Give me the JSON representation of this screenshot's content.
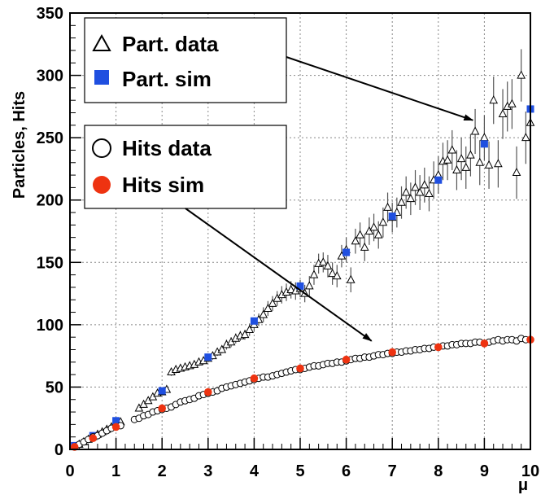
{
  "chart_data": {
    "type": "scatter",
    "xlabel": "μ",
    "ylabel": "Particles, Hits",
    "xlim": [
      0,
      10
    ],
    "ylim": [
      0,
      350
    ],
    "grid": true,
    "x_ticks": [
      0,
      1,
      2,
      3,
      4,
      5,
      6,
      7,
      8,
      9,
      10
    ],
    "y_ticks": [
      0,
      50,
      100,
      150,
      200,
      250,
      300,
      350
    ],
    "legends": [
      {
        "placement": "top-left",
        "entries": [
          "Part. data",
          "Part. sim"
        ]
      },
      {
        "placement": "middle-left",
        "entries": [
          "Hits data",
          "Hits sim"
        ]
      }
    ],
    "series": [
      {
        "name": "Part. data",
        "marker": "open-triangle",
        "color": "#000000",
        "points": [
          [
            0.1,
            2,
            1
          ],
          [
            0.2,
            4,
            1
          ],
          [
            0.3,
            6,
            1
          ],
          [
            0.4,
            8,
            1
          ],
          [
            0.5,
            10,
            1
          ],
          [
            0.6,
            12,
            1
          ],
          [
            0.7,
            14,
            1
          ],
          [
            0.8,
            16,
            1
          ],
          [
            0.9,
            18,
            1
          ],
          [
            1.0,
            21,
            1
          ],
          [
            1.1,
            22,
            2
          ],
          [
            1.5,
            33,
            2
          ],
          [
            1.6,
            36,
            2
          ],
          [
            1.7,
            39,
            2
          ],
          [
            1.8,
            42,
            2
          ],
          [
            1.9,
            45,
            2
          ],
          [
            2.0,
            46,
            2
          ],
          [
            2.1,
            48,
            2
          ],
          [
            2.2,
            62,
            3
          ],
          [
            2.3,
            64,
            3
          ],
          [
            2.4,
            65,
            3
          ],
          [
            2.5,
            66,
            3
          ],
          [
            2.6,
            67,
            3
          ],
          [
            2.7,
            68,
            3
          ],
          [
            2.8,
            70,
            3
          ],
          [
            2.9,
            71,
            3
          ],
          [
            3.0,
            73,
            3
          ],
          [
            3.1,
            75,
            3
          ],
          [
            3.2,
            78,
            3
          ],
          [
            3.3,
            80,
            3
          ],
          [
            3.4,
            84,
            4
          ],
          [
            3.5,
            86,
            4
          ],
          [
            3.6,
            89,
            4
          ],
          [
            3.7,
            91,
            4
          ],
          [
            3.8,
            92,
            4
          ],
          [
            3.9,
            96,
            5
          ],
          [
            4.0,
            100,
            5
          ],
          [
            4.1,
            104,
            5
          ],
          [
            4.2,
            108,
            6
          ],
          [
            4.3,
            113,
            6
          ],
          [
            4.4,
            117,
            6
          ],
          [
            4.5,
            121,
            6
          ],
          [
            4.6,
            124,
            7
          ],
          [
            4.7,
            126,
            7
          ],
          [
            4.8,
            128,
            7
          ],
          [
            4.9,
            127,
            7
          ],
          [
            5.0,
            129,
            7
          ],
          [
            5.1,
            125,
            7
          ],
          [
            5.2,
            131,
            8
          ],
          [
            5.3,
            140,
            8
          ],
          [
            5.4,
            149,
            8
          ],
          [
            5.5,
            150,
            8
          ],
          [
            5.6,
            147,
            9
          ],
          [
            5.7,
            141,
            9
          ],
          [
            5.8,
            139,
            9
          ],
          [
            5.9,
            155,
            9
          ],
          [
            6.0,
            160,
            10
          ],
          [
            6.1,
            136,
            10
          ],
          [
            6.2,
            167,
            10
          ],
          [
            6.3,
            172,
            10
          ],
          [
            6.4,
            162,
            11
          ],
          [
            6.5,
            175,
            11
          ],
          [
            6.6,
            178,
            11
          ],
          [
            6.7,
            172,
            11
          ],
          [
            6.8,
            182,
            12
          ],
          [
            6.9,
            194,
            12
          ],
          [
            7.0,
            186,
            12
          ],
          [
            7.1,
            190,
            12
          ],
          [
            7.2,
            198,
            13
          ],
          [
            7.3,
            206,
            13
          ],
          [
            7.4,
            201,
            13
          ],
          [
            7.5,
            210,
            14
          ],
          [
            7.6,
            206,
            14
          ],
          [
            7.7,
            212,
            14
          ],
          [
            7.8,
            205,
            14
          ],
          [
            7.9,
            216,
            15
          ],
          [
            8.0,
            220,
            15
          ],
          [
            8.1,
            231,
            15
          ],
          [
            8.2,
            232,
            16
          ],
          [
            8.3,
            240,
            16
          ],
          [
            8.4,
            224,
            16
          ],
          [
            8.5,
            233,
            17
          ],
          [
            8.6,
            226,
            17
          ],
          [
            8.7,
            236,
            17
          ],
          [
            8.8,
            255,
            18
          ],
          [
            8.9,
            230,
            18
          ],
          [
            9.0,
            250,
            18
          ],
          [
            9.1,
            228,
            19
          ],
          [
            9.2,
            280,
            19
          ],
          [
            9.3,
            229,
            19
          ],
          [
            9.4,
            269,
            20
          ],
          [
            9.5,
            275,
            20
          ],
          [
            9.6,
            277,
            20
          ],
          [
            9.7,
            222,
            21
          ],
          [
            9.8,
            300,
            21
          ],
          [
            9.9,
            250,
            21
          ],
          [
            10.0,
            262,
            22
          ]
        ]
      },
      {
        "name": "Part. sim",
        "marker": "filled-square",
        "color": "#1f4fe0",
        "points": [
          [
            0.1,
            3
          ],
          [
            0.5,
            11
          ],
          [
            1.0,
            23
          ],
          [
            2.0,
            47
          ],
          [
            3.0,
            74
          ],
          [
            4.0,
            103
          ],
          [
            5.0,
            131
          ],
          [
            6.0,
            158
          ],
          [
            7.0,
            187
          ],
          [
            8.0,
            216
          ],
          [
            9.0,
            245
          ],
          [
            10.0,
            273
          ]
        ]
      },
      {
        "name": "Hits data",
        "marker": "open-circle",
        "color": "#000000",
        "points": [
          [
            0.1,
            2
          ],
          [
            0.2,
            4
          ],
          [
            0.3,
            6
          ],
          [
            0.4,
            8
          ],
          [
            0.5,
            10
          ],
          [
            0.6,
            11
          ],
          [
            0.7,
            13
          ],
          [
            0.8,
            15
          ],
          [
            0.9,
            17
          ],
          [
            1.0,
            18
          ],
          [
            1.1,
            19
          ],
          [
            1.4,
            24
          ],
          [
            1.5,
            25
          ],
          [
            1.6,
            27
          ],
          [
            1.7,
            28
          ],
          [
            1.8,
            30
          ],
          [
            1.9,
            31
          ],
          [
            2.0,
            32
          ],
          [
            2.1,
            33
          ],
          [
            2.2,
            34
          ],
          [
            2.3,
            36
          ],
          [
            2.4,
            38
          ],
          [
            2.5,
            39
          ],
          [
            2.6,
            40
          ],
          [
            2.7,
            41
          ],
          [
            2.8,
            43
          ],
          [
            2.9,
            44
          ],
          [
            3.0,
            45
          ],
          [
            3.1,
            46
          ],
          [
            3.2,
            47
          ],
          [
            3.3,
            49
          ],
          [
            3.4,
            50
          ],
          [
            3.5,
            51
          ],
          [
            3.6,
            52
          ],
          [
            3.7,
            53
          ],
          [
            3.8,
            54
          ],
          [
            3.9,
            55
          ],
          [
            4.0,
            56
          ],
          [
            4.1,
            57
          ],
          [
            4.2,
            58
          ],
          [
            4.3,
            58
          ],
          [
            4.4,
            59
          ],
          [
            4.5,
            60
          ],
          [
            4.6,
            61
          ],
          [
            4.7,
            62
          ],
          [
            4.8,
            63
          ],
          [
            4.9,
            64
          ],
          [
            5.0,
            64
          ],
          [
            5.1,
            65
          ],
          [
            5.2,
            66
          ],
          [
            5.3,
            67
          ],
          [
            5.4,
            67
          ],
          [
            5.5,
            68
          ],
          [
            5.6,
            69
          ],
          [
            5.7,
            69
          ],
          [
            5.8,
            70
          ],
          [
            5.9,
            70
          ],
          [
            6.0,
            71
          ],
          [
            6.1,
            72
          ],
          [
            6.2,
            73
          ],
          [
            6.3,
            73
          ],
          [
            6.4,
            74
          ],
          [
            6.5,
            74
          ],
          [
            6.6,
            75
          ],
          [
            6.7,
            76
          ],
          [
            6.8,
            76
          ],
          [
            6.9,
            77
          ],
          [
            7.0,
            77
          ],
          [
            7.1,
            78
          ],
          [
            7.2,
            78
          ],
          [
            7.3,
            79
          ],
          [
            7.4,
            79
          ],
          [
            7.5,
            80
          ],
          [
            7.6,
            80
          ],
          [
            7.7,
            81
          ],
          [
            7.8,
            81
          ],
          [
            7.9,
            82
          ],
          [
            8.0,
            82
          ],
          [
            8.1,
            83
          ],
          [
            8.2,
            83
          ],
          [
            8.3,
            84
          ],
          [
            8.4,
            84
          ],
          [
            8.5,
            85
          ],
          [
            8.6,
            85
          ],
          [
            8.7,
            85
          ],
          [
            8.8,
            86
          ],
          [
            8.9,
            86
          ],
          [
            9.0,
            85
          ],
          [
            9.1,
            86
          ],
          [
            9.2,
            87
          ],
          [
            9.3,
            88
          ],
          [
            9.4,
            87
          ],
          [
            9.5,
            88
          ],
          [
            9.6,
            88
          ],
          [
            9.7,
            87
          ],
          [
            9.8,
            89
          ],
          [
            9.9,
            88
          ],
          [
            10.0,
            88
          ]
        ]
      },
      {
        "name": "Hits sim",
        "marker": "filled-circle",
        "color": "#ee3311",
        "points": [
          [
            0.1,
            2
          ],
          [
            0.5,
            9
          ],
          [
            1.0,
            18
          ],
          [
            2.0,
            33
          ],
          [
            3.0,
            46
          ],
          [
            4.0,
            57
          ],
          [
            5.0,
            65
          ],
          [
            6.0,
            72
          ],
          [
            7.0,
            78
          ],
          [
            8.0,
            82
          ],
          [
            9.0,
            85
          ],
          [
            10.0,
            88
          ]
        ]
      }
    ],
    "annotations": [
      {
        "type": "arrow",
        "from_legend": 0,
        "to": [
          8.75,
          264
        ]
      },
      {
        "type": "arrow",
        "from_legend": 1,
        "to": [
          6.55,
          87
        ]
      }
    ]
  }
}
